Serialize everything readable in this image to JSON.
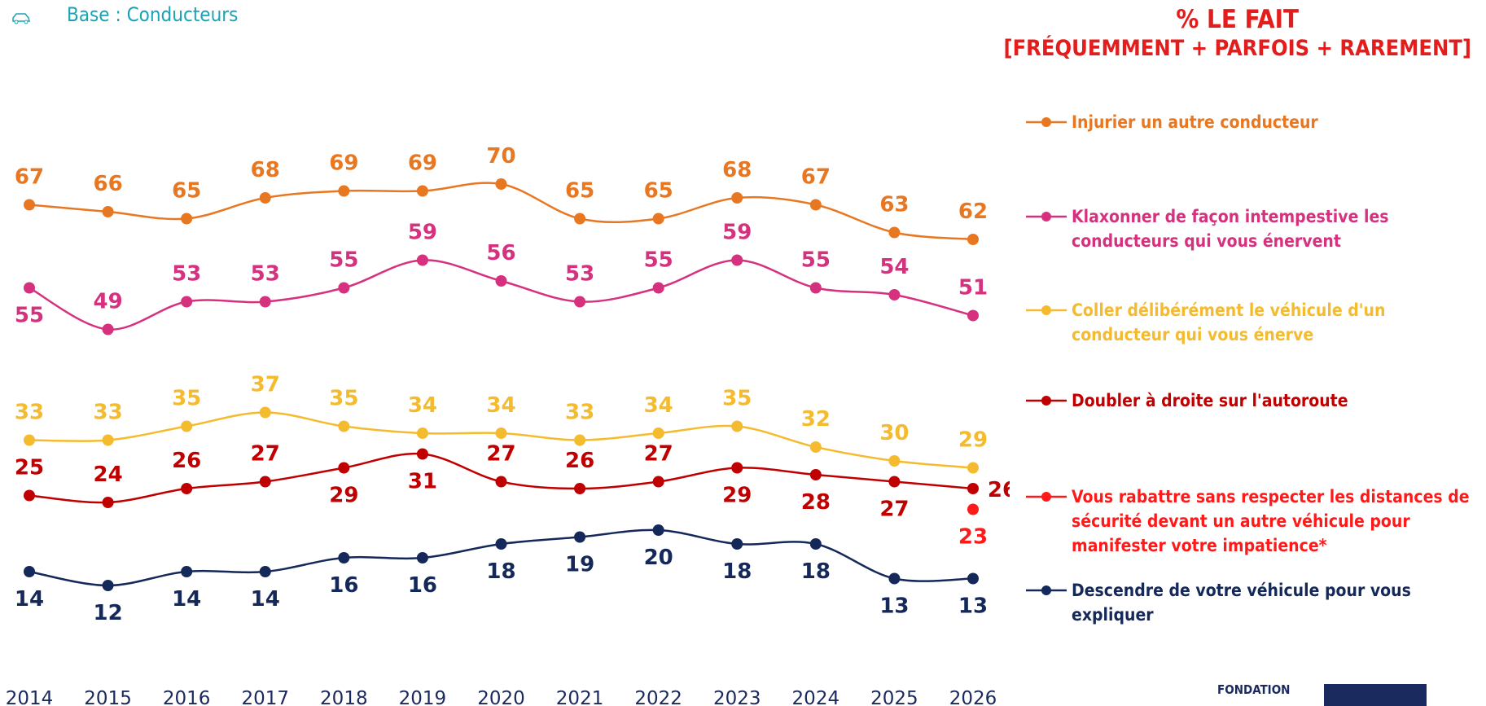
{
  "subtitle": "Base : Conducteurs",
  "header": {
    "line1": "% LE FAIT",
    "line2": "[FRÉQUEMMENT + PARFOIS + RAREMENT]"
  },
  "logo": "FONDATION",
  "chart_data": {
    "type": "line",
    "categories": [
      "2014",
      "2015",
      "2016",
      "2017",
      "2018",
      "2019",
      "2020",
      "2021",
      "2022",
      "2023",
      "2024",
      "2025",
      "2026"
    ],
    "series": [
      {
        "name": "Injurier un autre conducteur",
        "color": "#e87722",
        "values": [
          67,
          66,
          65,
          68,
          69,
          69,
          70,
          65,
          65,
          68,
          67,
          63,
          62
        ]
      },
      {
        "name": "Klaxonner de façon intempestive les conducteurs qui vous énervent",
        "color": "#d6317f",
        "values": [
          55,
          49,
          53,
          53,
          55,
          59,
          56,
          53,
          55,
          59,
          55,
          54,
          51
        ]
      },
      {
        "name": "Coller délibérément le véhicule d'un conducteur qui vous énerve",
        "color": "#f4bb2f",
        "values": [
          33,
          33,
          35,
          37,
          35,
          34,
          34,
          33,
          34,
          35,
          32,
          30,
          29
        ]
      },
      {
        "name": "Doubler à droite sur l'autoroute",
        "color": "#c00000",
        "values": [
          25,
          24,
          26,
          27,
          29,
          31,
          27,
          26,
          27,
          29,
          28,
          27,
          26
        ]
      },
      {
        "name": "Vous rabattre sans respecter les distances de sécurité devant un autre véhicule pour manifester votre impatience*",
        "color": "#ff1a1a",
        "values": [
          null,
          null,
          null,
          null,
          null,
          null,
          null,
          null,
          null,
          null,
          null,
          null,
          23
        ]
      },
      {
        "name": "Descendre de votre véhicule pour vous expliquer",
        "color": "#14285a",
        "values": [
          14,
          12,
          14,
          14,
          16,
          16,
          18,
          19,
          20,
          18,
          18,
          13,
          13
        ]
      }
    ]
  }
}
